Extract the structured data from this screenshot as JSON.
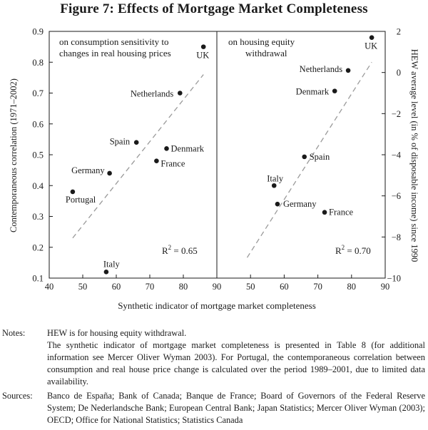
{
  "figure": {
    "title": "Figure 7: Effects of Mortgage Market Completeness"
  },
  "chart_data": [
    {
      "type": "scatter",
      "panel": "left",
      "annotation": "on consumption sensitivity to changes in real housing prices",
      "annotation_lines": [
        "on consumption sensitivity to",
        "changes in real housing prices"
      ],
      "ylabel": "Contemporaneous correlation (1971–2002)",
      "xlabel": "Synthetic indicator of mortgage market completeness",
      "xlim": [
        40,
        90
      ],
      "ylim": [
        0.1,
        0.9
      ],
      "xticks": [
        40,
        50,
        60,
        70,
        80,
        90
      ],
      "yticks": [
        0.1,
        0.2,
        0.3,
        0.4,
        0.5,
        0.6,
        0.7,
        0.8,
        0.9
      ],
      "ytick_labels": [
        "0.1",
        "0.2",
        "0.3",
        "0.4",
        "0.5",
        "0.6",
        "0.7",
        "0.8",
        "0.9"
      ],
      "points": [
        {
          "label": "UK",
          "x": 86,
          "y": 0.85
        },
        {
          "label": "Netherlands",
          "x": 79,
          "y": 0.7
        },
        {
          "label": "Spain",
          "x": 66,
          "y": 0.54
        },
        {
          "label": "Denmark",
          "x": 75,
          "y": 0.52
        },
        {
          "label": "France",
          "x": 72,
          "y": 0.48
        },
        {
          "label": "Germany",
          "x": 58,
          "y": 0.44
        },
        {
          "label": "Portugal",
          "x": 47,
          "y": 0.38
        },
        {
          "label": "Italy",
          "x": 57,
          "y": 0.12
        }
      ],
      "fit_line": {
        "x": [
          47,
          86
        ],
        "y": [
          0.23,
          0.76
        ]
      },
      "r2_label": "R",
      "r2_sup": "2",
      "r2_value": " = 0.65",
      "grid": false
    },
    {
      "type": "scatter",
      "panel": "right",
      "annotation": "on housing equity withdrawal",
      "annotation_lines": [
        "on housing equity",
        "withdrawal"
      ],
      "ylabel": "HEW average level (in % of disposable income) since 1990",
      "xlim": [
        40,
        90
      ],
      "ylim": [
        -10,
        2
      ],
      "xticks": [
        50,
        60,
        70,
        80,
        90
      ],
      "yticks": [
        -10,
        -8,
        -6,
        -4,
        -2,
        0,
        2
      ],
      "ytick_labels": [
        "−10",
        "−8",
        "−6",
        "−4",
        "−2",
        "0",
        "2"
      ],
      "points": [
        {
          "label": "UK",
          "x": 86,
          "y": 1.7
        },
        {
          "label": "Netherlands",
          "x": 79,
          "y": 0.1
        },
        {
          "label": "Denmark",
          "x": 75,
          "y": -0.9
        },
        {
          "label": "Spain",
          "x": 66,
          "y": -4.1
        },
        {
          "label": "Italy",
          "x": 57,
          "y": -5.5
        },
        {
          "label": "Germany",
          "x": 58,
          "y": -6.4
        },
        {
          "label": "France",
          "x": 72,
          "y": -6.8
        }
      ],
      "fit_line": {
        "x": [
          49,
          86
        ],
        "y": [
          -9.0,
          0.5
        ]
      },
      "r2_label": "R",
      "r2_sup": "2",
      "r2_value": " = 0.70",
      "grid": false
    }
  ],
  "notes": {
    "label": "Notes:",
    "line1": "HEW is for housing equity withdrawal.",
    "line2": "The synthetic indicator of mortgage market completeness is presented in Table 8 (for additional information see Mercer Oliver Wyman 2003). For Portugal, the contemporaneous correlation between consumption and real house price change is calculated over the period 1989–2001, due to limited data availability."
  },
  "sources": {
    "label": "Sources:",
    "text": "Banco de España; Bank of Canada; Banque de France; Board of Governors of the Federal Reserve System; De Nederlandsche Bank; European Central Bank; Japan Statistics; Mercer Oliver Wyman (2003); OECD; Office for National Statistics; Statistics Canada"
  }
}
